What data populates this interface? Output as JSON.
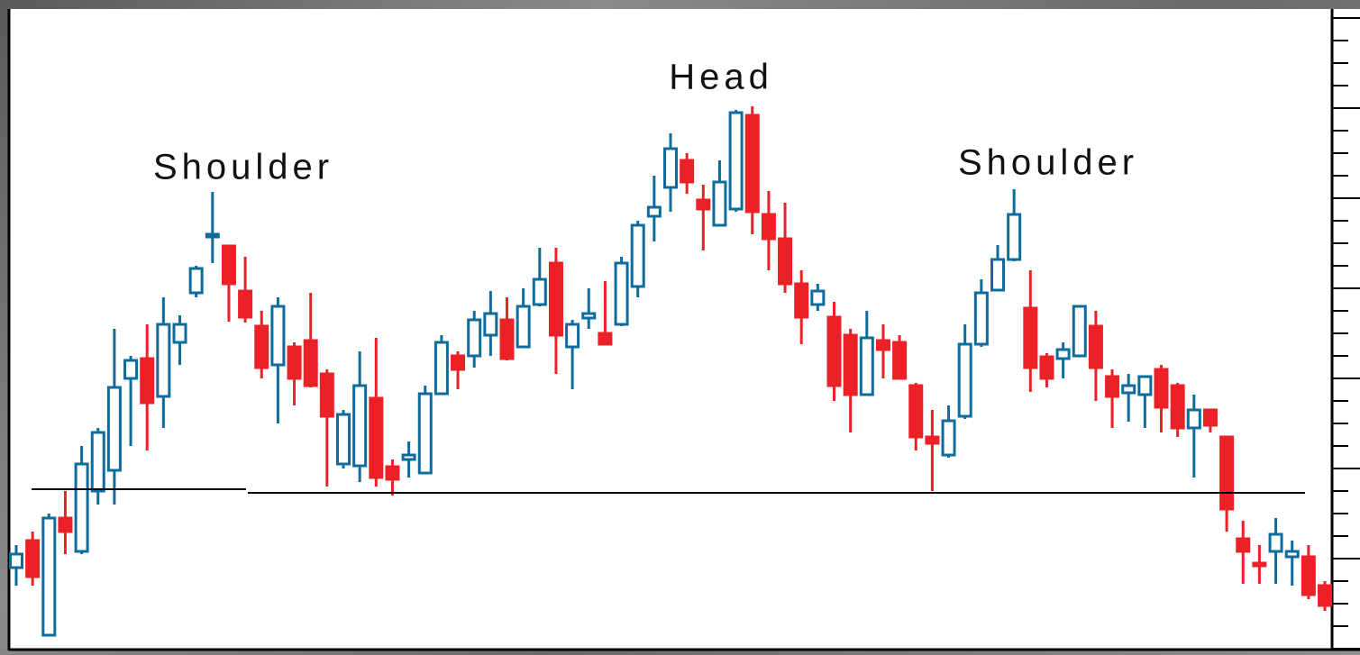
{
  "chart_data": {
    "type": "candlestick",
    "up_color": "#0e6c9c",
    "down_color": "#ec2127",
    "open": [
      9,
      12,
      1.5,
      14.5,
      10.8,
      17.5,
      19.8,
      30,
      32.2,
      28,
      34,
      39.5,
      45.7,
      44.7,
      39.7,
      35.8,
      31.5,
      33.5,
      34.2,
      30.5,
      20.5,
      20.3,
      27.8,
      20.2,
      21,
      19.5,
      28.3,
      32.5,
      32.5,
      34.8,
      36.5,
      33.5,
      38.2,
      42.8,
      33.5,
      36.7,
      35,
      36,
      40.2,
      48,
      51.2,
      54.2,
      49.8,
      47,
      48.8,
      59.2,
      48.2,
      45.5,
      40.5,
      38.2,
      36.8,
      34.8,
      28.2,
      34.2,
      34,
      29.2,
      23.5,
      21.5,
      25.8,
      33.8,
      39.8,
      43.2,
      37.8,
      32.4,
      32.2,
      32.5,
      35.8,
      30.2,
      28.4,
      28.2,
      31,
      29.2,
      24.5,
      26.5,
      23.5,
      12.2,
      9.5,
      10.8,
      10.2,
      10.2,
      7
    ],
    "high": [
      11.5,
      13,
      15,
      17.5,
      22.5,
      24.5,
      35.5,
      32.5,
      36,
      39,
      37,
      42.5,
      50.7,
      44.7,
      43.5,
      37.5,
      39,
      34,
      39.5,
      31,
      26.5,
      33,
      34.5,
      21,
      23,
      29.2,
      34.8,
      33,
      37.5,
      39.7,
      39,
      40,
      44.5,
      44.5,
      36.5,
      40,
      40.8,
      43.5,
      47.5,
      52.5,
      57.2,
      55,
      51.5,
      54.2,
      59.8,
      60.2,
      50.8,
      49.5,
      42,
      40.5,
      38.5,
      35.5,
      37.5,
      36,
      34.8,
      29.5,
      26.5,
      27,
      36,
      41,
      44.8,
      51,
      42,
      32.8,
      34,
      38,
      37.5,
      31,
      30.5,
      30.2,
      31.5,
      29.5,
      28.2,
      26.5,
      23.5,
      14.2,
      11.5,
      14.5,
      12,
      11.5,
      7.5
    ],
    "low": [
      7,
      7,
      1.5,
      10.5,
      10.5,
      16,
      16,
      22.5,
      22,
      24.5,
      31.5,
      39,
      42.8,
      36.3,
      36.2,
      30,
      25,
      27,
      29,
      18,
      20,
      18.5,
      18,
      17,
      19,
      19.5,
      28.2,
      28.8,
      31.2,
      32.5,
      32,
      33.5,
      38,
      30.5,
      28.8,
      35.5,
      33.8,
      35.8,
      39,
      45.2,
      48.5,
      50.5,
      44.2,
      47,
      48.5,
      46,
      42,
      39.5,
      33.8,
      37.5,
      27.5,
      24,
      28.2,
      30,
      30,
      22,
      17.5,
      21.2,
      25.5,
      33.5,
      39.8,
      43,
      28.5,
      29,
      30,
      32.5,
      27.5,
      24.5,
      25.2,
      24.5,
      24,
      23.5,
      19,
      24,
      13,
      7.2,
      7.2,
      7.2,
      7,
      5.5,
      4.2
    ],
    "close": [
      10.5,
      8,
      14.5,
      13,
      20.5,
      24,
      29,
      32,
      27.3,
      36,
      36,
      42.2,
      46,
      40.5,
      36.8,
      31.2,
      38,
      30,
      29.2,
      25.8,
      26,
      29.2,
      19,
      18.8,
      21.5,
      28.3,
      34,
      31,
      36.5,
      37.2,
      32.2,
      38,
      41,
      34.8,
      36,
      37.2,
      33.8,
      42.8,
      47,
      49,
      55.5,
      51.8,
      48.8,
      51.8,
      59.5,
      48.5,
      45.5,
      40.5,
      36.8,
      39.7,
      29.2,
      28.2,
      34.5,
      33.2,
      30,
      23.5,
      22.8,
      25.3,
      33.8,
      39.5,
      43.2,
      48.2,
      31.2,
      30,
      33.2,
      38,
      31.2,
      28,
      29.2,
      30.2,
      26.8,
      24.5,
      26.5,
      24.8,
      15.5,
      10.8,
      9.2,
      12.7,
      10.8,
      6,
      4.8
    ],
    "neckline": [
      17.7,
      17.3
    ],
    "annotations": [
      "Shoulder",
      "Head",
      "Shoulder"
    ],
    "ylim": [
      0,
      71
    ],
    "yticks": [
      0,
      2.5,
      5,
      7.5,
      10,
      12.5,
      15,
      17.5,
      20,
      22.5,
      25,
      27.5,
      30,
      32.5,
      35,
      37.5,
      40,
      42.5,
      45,
      47.5,
      50,
      52.5,
      55,
      57.5,
      60,
      62.5,
      65,
      67.5,
      70
    ]
  }
}
